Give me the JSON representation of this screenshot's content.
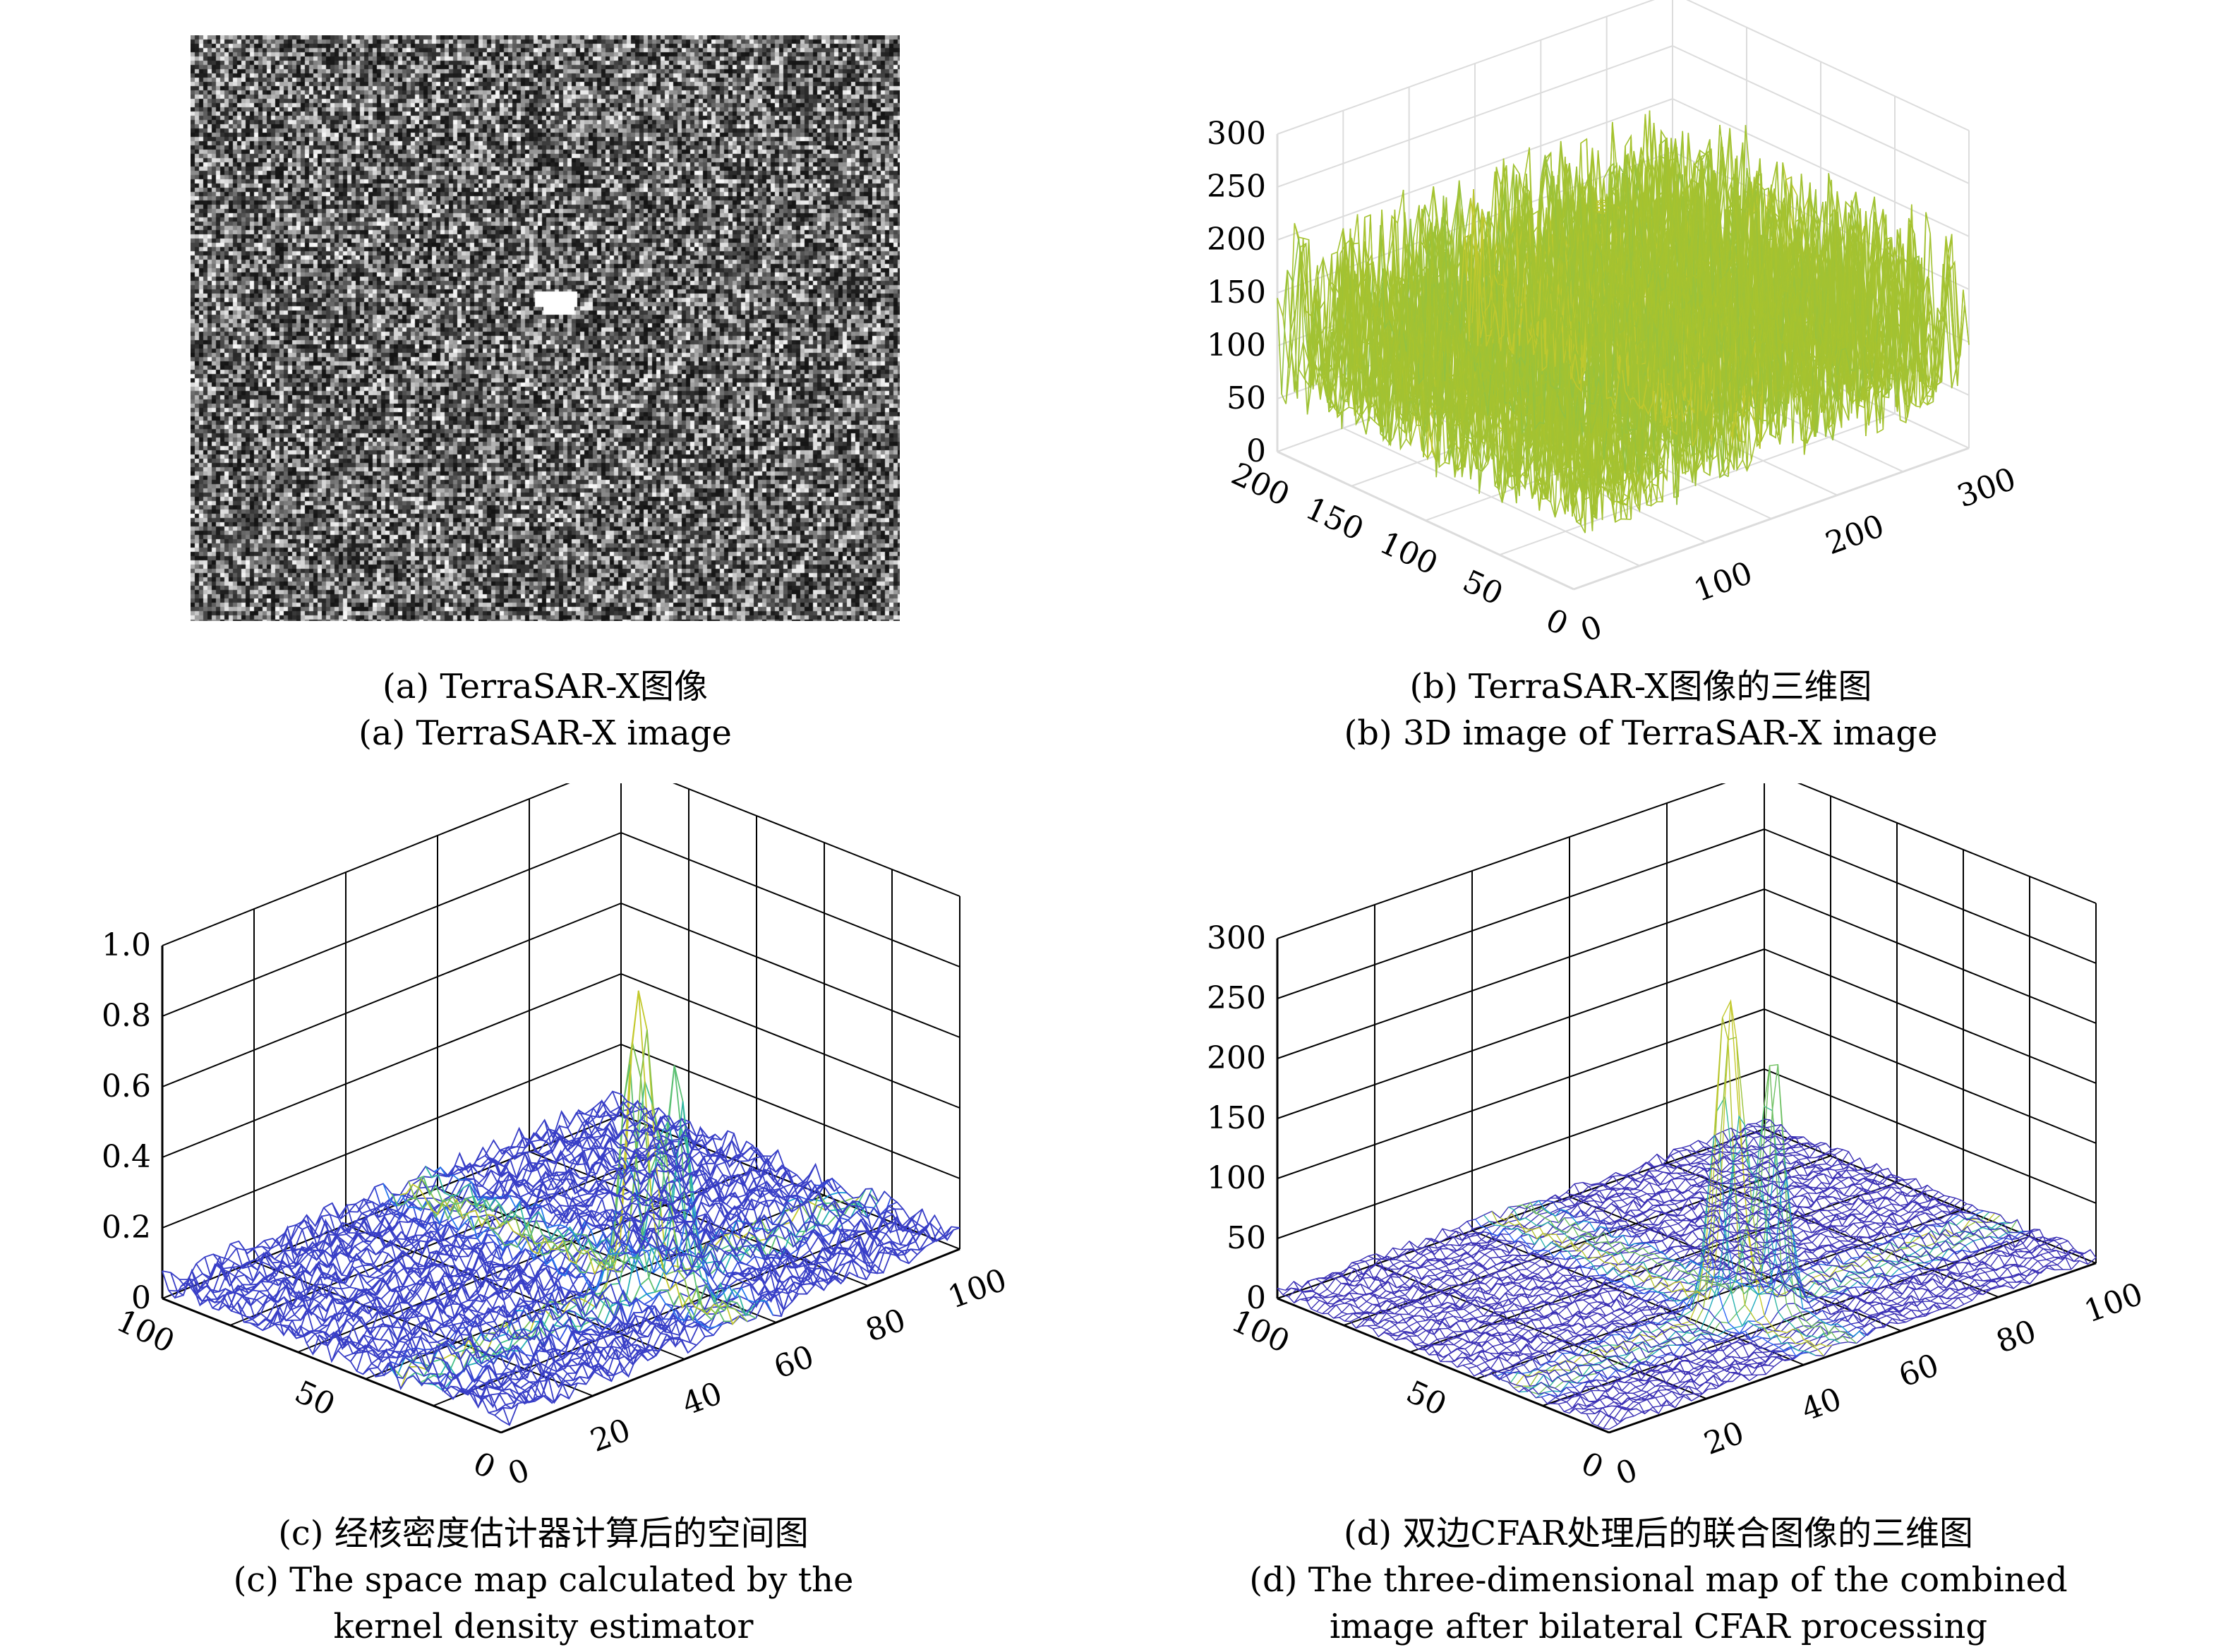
{
  "figure": {
    "panels": [
      {
        "id": "a",
        "caption_cn": "(a) TerraSAR-X图像",
        "caption_en": [
          "(a) TerraSAR-X image"
        ]
      },
      {
        "id": "b",
        "caption_cn": "(b) TerraSAR-X图像的三维图",
        "caption_en": [
          "(b) 3D image of TerraSAR-X image"
        ]
      },
      {
        "id": "c",
        "caption_cn": "(c) 经核密度估计器计算后的空间图",
        "caption_en": [
          "(c) The space map calculated by the",
          "kernel density estimator"
        ]
      },
      {
        "id": "d",
        "caption_cn": "(d) 双边CFAR处理后的联合图像的三维图",
        "caption_en": [
          "(d) The three-dimensional map of the combined",
          "image after bilateral CFAR processing"
        ]
      }
    ]
  },
  "chart_data": [
    {
      "type": "surface",
      "panel": "b",
      "zticks": [
        "0",
        "50",
        "100",
        "150",
        "200",
        "250",
        "300"
      ],
      "zlim": [
        0,
        300
      ],
      "xticks": [
        "0",
        "100",
        "200",
        "300"
      ],
      "yticks": [
        "0",
        "50",
        "100",
        "150",
        "200"
      ],
      "colormap": "parula",
      "colors": [
        "#3e26a8",
        "#2f64f8",
        "#14a2d4",
        "#3bbf91",
        "#a6c330",
        "#f9d52a"
      ]
    },
    {
      "type": "surface",
      "panel": "c",
      "zticks": [
        "0",
        "0.2",
        "0.4",
        "0.6",
        "0.8",
        "1.0"
      ],
      "zlim": [
        0,
        1.0
      ],
      "xticks": [
        "0",
        "20",
        "40",
        "60",
        "80",
        "100"
      ],
      "yticks": [
        "0",
        "50",
        "100"
      ],
      "peak_value": 0.85,
      "colormap": "parula"
    },
    {
      "type": "surface",
      "panel": "d",
      "zticks": [
        "0",
        "50",
        "100",
        "150",
        "200",
        "250",
        "300"
      ],
      "zlim": [
        0,
        300
      ],
      "xticks": [
        "0",
        "20",
        "40",
        "60",
        "80",
        "100"
      ],
      "yticks": [
        "0",
        "50",
        "100"
      ],
      "peak_value": 280,
      "colormap": "parula"
    }
  ]
}
